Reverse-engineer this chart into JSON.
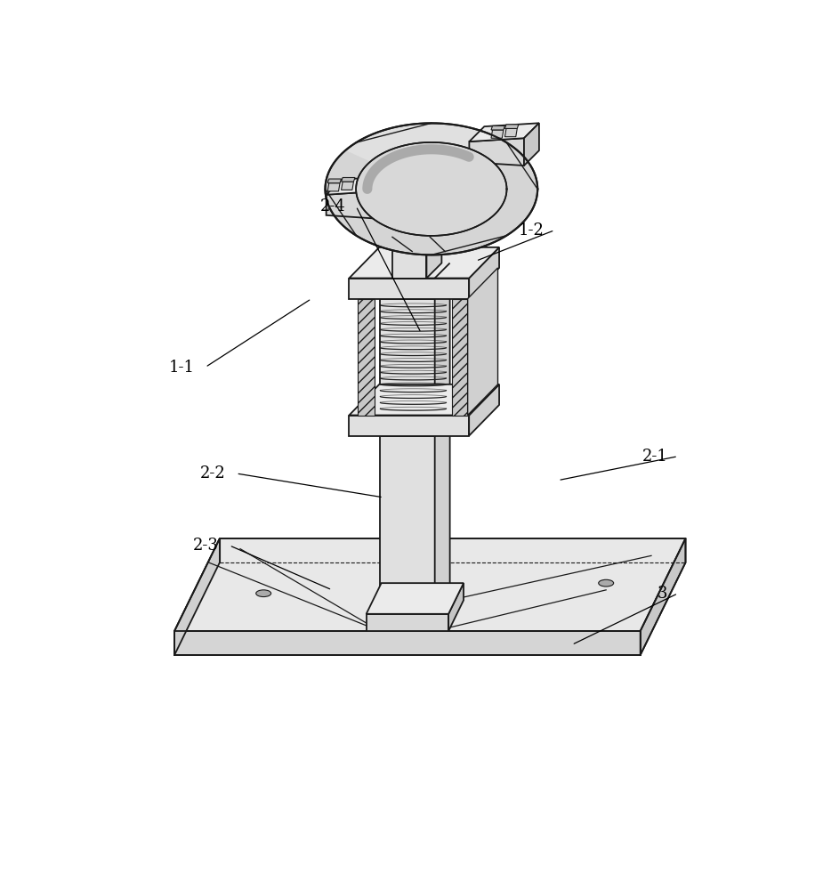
{
  "bg_color": "#ffffff",
  "lc": "#1a1a1a",
  "fc_light": "#eeeeee",
  "fc_mid": "#d8d8d8",
  "fc_dark": "#c0c0c0",
  "fc_hatch": "#cccccc",
  "spring_color": "#222222",
  "label_fs": 13,
  "labels": {
    "3": [
      820,
      290,
      680,
      215
    ],
    "2-1": [
      820,
      490,
      660,
      455
    ],
    "2-2": [
      175,
      465,
      405,
      430
    ],
    "2-3": [
      165,
      360,
      330,
      295
    ],
    "1-1": [
      130,
      620,
      300,
      720
    ],
    "1-2": [
      640,
      820,
      540,
      775
    ],
    "2-4": [
      350,
      855,
      460,
      670
    ]
  }
}
